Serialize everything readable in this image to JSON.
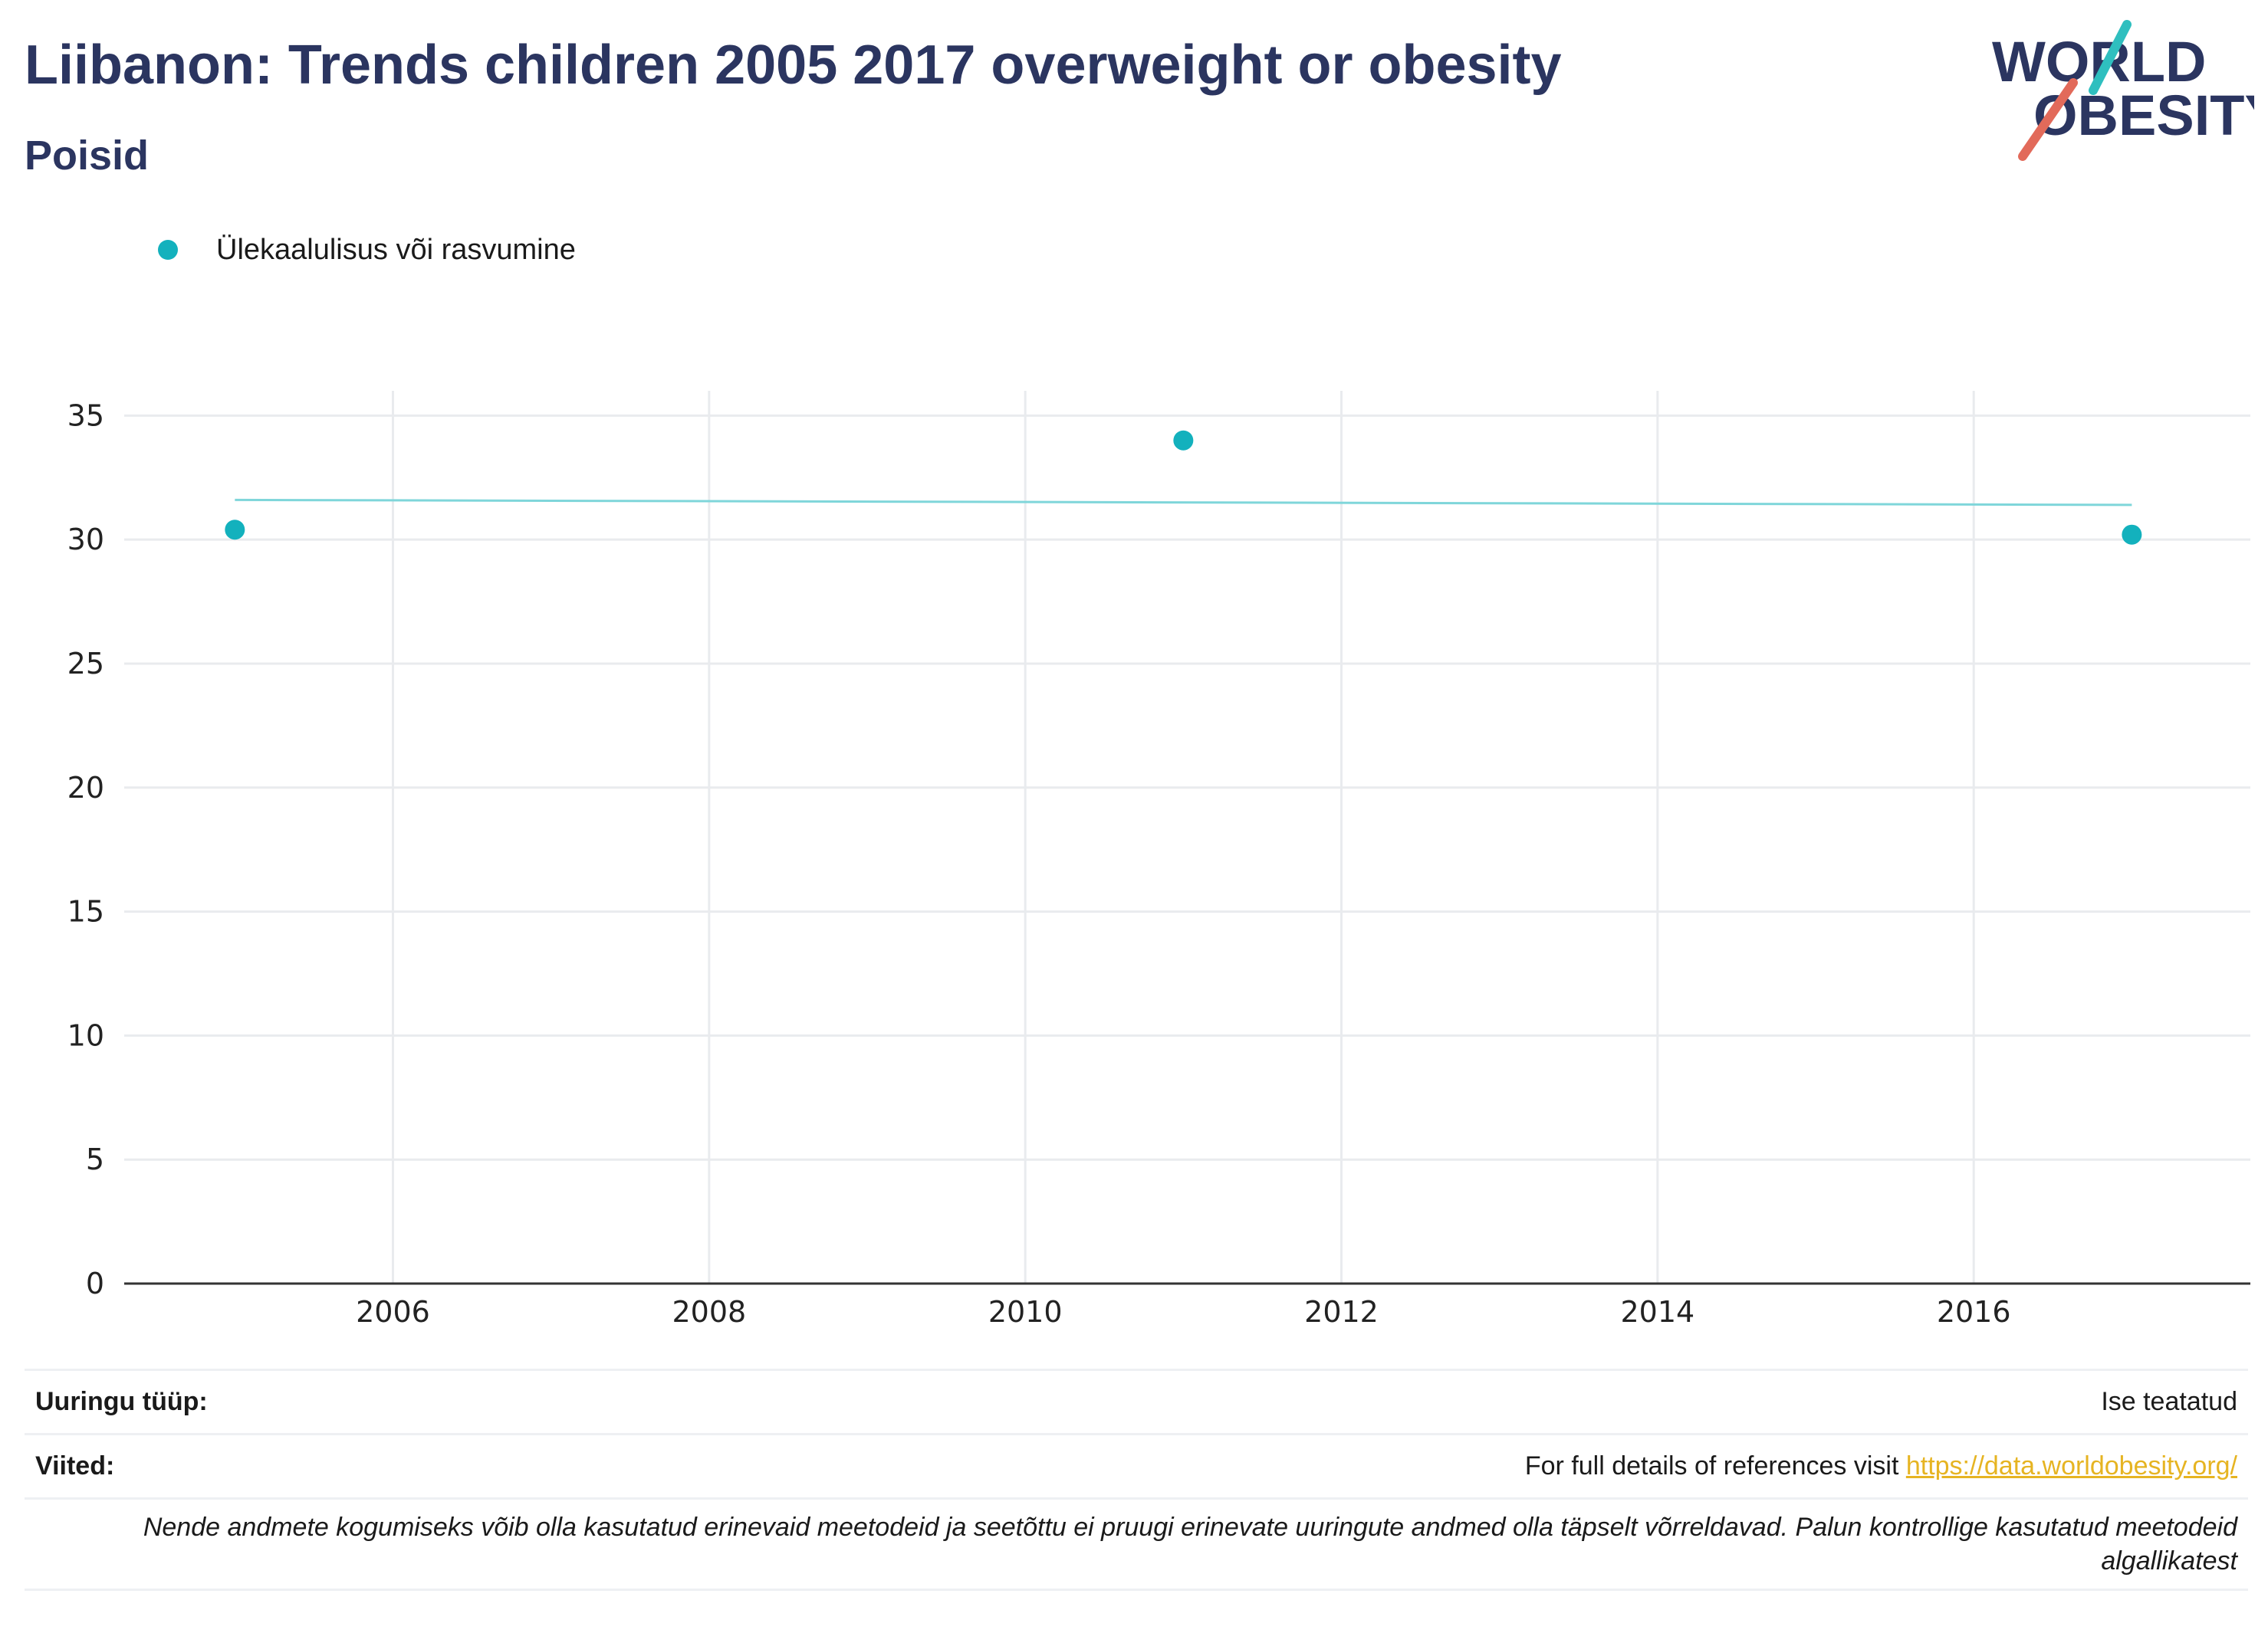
{
  "header": {
    "title": "Liibanon: Trends children 2005 2017 overweight or obesity",
    "subtitle": "Poisid",
    "logo_line1": "WORLD",
    "logo_line2": "OBESITY"
  },
  "legend": {
    "label": "Ülekaalulisus või rasvumine"
  },
  "colors": {
    "series": "#13b1bd",
    "trend": "#7fd6da",
    "title": "#2b3560",
    "link": "#e6b422",
    "logo_teal": "#2fbfbf",
    "logo_red": "#e26a5a"
  },
  "chart_data": {
    "type": "scatter",
    "series": [
      {
        "name": "Ülekaalulisus või rasvumine",
        "x": [
          2005,
          2011,
          2017
        ],
        "y": [
          30.4,
          34.0,
          30.2
        ]
      }
    ],
    "trendline": {
      "x": [
        2005,
        2017
      ],
      "y": [
        31.6,
        31.4
      ]
    },
    "xlim": [
      2004.3,
      2017.75
    ],
    "ylim": [
      0,
      36
    ],
    "xticks": [
      2006,
      2008,
      2010,
      2012,
      2014,
      2016
    ],
    "yticks": [
      0,
      5,
      10,
      15,
      20,
      25,
      30,
      35
    ],
    "grid": true,
    "legend_position": "top-left",
    "title": "Liibanon: Trends children 2005 2017 overweight or obesity",
    "xlabel": "",
    "ylabel": ""
  },
  "footer": {
    "survey_label": "Uuringu tüüp:",
    "survey_value": "Ise teatatud",
    "refs_label": "Viited:",
    "refs_text": "For full details of references visit ",
    "refs_link": "https://data.worldobesity.org/",
    "note": "Nende andmete kogumiseks võib olla kasutatud erinevaid meetodeid ja seetõttu ei pruugi erinevate uuringute andmed olla täpselt võrreldavad. Palun kontrollige kasutatud meetodeid algallikatest"
  }
}
